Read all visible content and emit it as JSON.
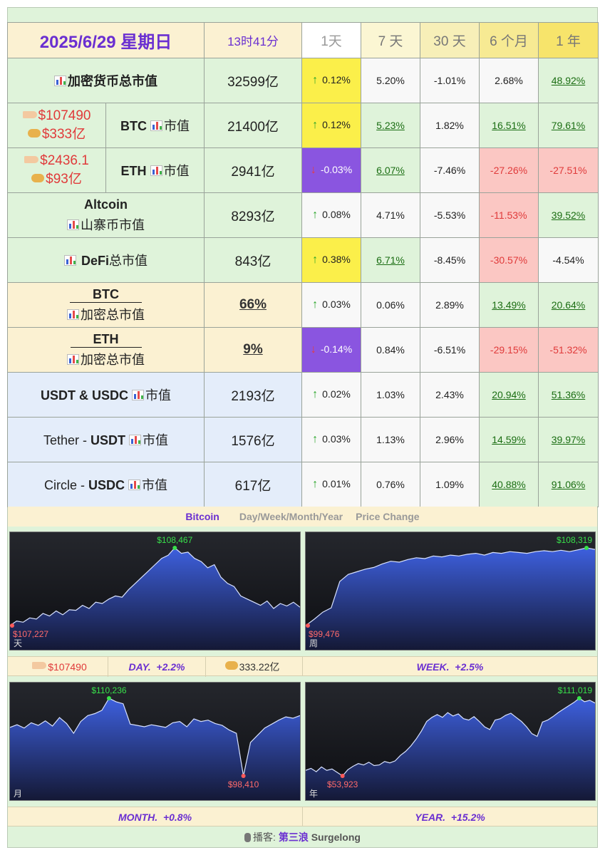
{
  "header": {
    "date": "2025/6/29 星期日",
    "time": "13时41分",
    "periods": [
      "1天",
      "7 天",
      "30 天",
      "6 个月",
      "1 年"
    ]
  },
  "rows": [
    {
      "id": "total",
      "label": "加密货币总市值",
      "value": "32599亿",
      "changes": [
        "0.12%",
        "5.20%",
        "-1.01%",
        "2.68%",
        "48.92%"
      ]
    },
    {
      "id": "btc",
      "price": "$107490",
      "volume": "$333亿",
      "coin": "BTC",
      "label": "市值",
      "value": "21400亿",
      "changes": [
        "0.12%",
        "5.23%",
        "1.82%",
        "16.51%",
        "79.61%"
      ]
    },
    {
      "id": "eth",
      "price": "$2436.1",
      "volume": "$93亿",
      "coin": "ETH",
      "label": "市值",
      "value": "2941亿",
      "changes": [
        "-0.03%",
        "6.07%",
        "-7.46%",
        "-27.26%",
        "-27.51%"
      ]
    },
    {
      "id": "alt",
      "title": "Altcoin",
      "label": "山寨币市值",
      "value": "8293亿",
      "changes": [
        "0.08%",
        "4.71%",
        "-5.53%",
        "-11.53%",
        "39.52%"
      ]
    },
    {
      "id": "defi",
      "coin": "DeFi",
      "label": "总市值",
      "value": "843亿",
      "changes": [
        "0.38%",
        "6.71%",
        "-8.45%",
        "-30.57%",
        "-4.54%"
      ]
    },
    {
      "id": "btcdom",
      "title": "BTC",
      "label": "加密总市值",
      "value": "66%",
      "changes": [
        "0.03%",
        "0.06%",
        "2.89%",
        "13.49%",
        "20.64%"
      ]
    },
    {
      "id": "ethdom",
      "title": "ETH",
      "label": "加密总市值",
      "value": "9%",
      "changes": [
        "-0.14%",
        "0.84%",
        "-6.51%",
        "-29.15%",
        "-51.32%"
      ]
    },
    {
      "id": "stable",
      "coin": "USDT & USDC",
      "label": "市值",
      "value": "2193亿",
      "changes": [
        "0.02%",
        "1.03%",
        "2.43%",
        "20.94%",
        "51.36%"
      ]
    },
    {
      "id": "usdt",
      "prefix": "Tether - ",
      "coin": "USDT",
      "label": "市值",
      "value": "1576亿",
      "changes": [
        "0.03%",
        "1.13%",
        "2.96%",
        "14.59%",
        "39.97%"
      ]
    },
    {
      "id": "usdc",
      "prefix": "Circle - ",
      "coin": "USDC",
      "label": "市值",
      "value": "617亿",
      "changes": [
        "0.01%",
        "0.76%",
        "1.09%",
        "40.88%",
        "91.06%"
      ]
    }
  ],
  "section": {
    "name": "Bitcoin",
    "desc": "Day/Week/Month/Year",
    "desc2": "Price Change"
  },
  "day_strip": {
    "price": "$107490",
    "label": "DAY.",
    "change": "+2.2%",
    "volume": "333.22亿"
  },
  "week_strip": {
    "label": "WEEK.",
    "change": "+2.5%"
  },
  "month_strip": {
    "label": "MONTH.",
    "change": "+0.8%"
  },
  "year_strip": {
    "label": "YEAR.",
    "change": "+15.2%"
  },
  "footer": {
    "prefix": "播客:",
    "name": "第三浪",
    "en": "Surgelong"
  },
  "colors": {
    "up": "#2aa52a",
    "down": "#e53d3d",
    "accent": "#6a2fd1"
  },
  "chart_data": [
    {
      "type": "area",
      "title": "",
      "period_label": "天",
      "max_label": "$108,467",
      "min_label": "$107,227",
      "values": [
        107227,
        107300,
        107280,
        107350,
        107330,
        107420,
        107380,
        107460,
        107400,
        107480,
        107470,
        107550,
        107500,
        107600,
        107580,
        107650,
        107700,
        107680,
        107800,
        107900,
        108000,
        108100,
        108200,
        108300,
        108350,
        108467,
        108380,
        108400,
        108300,
        108250,
        108150,
        108200,
        108000,
        107900,
        107850,
        107700,
        107650,
        107600,
        107550,
        107620,
        107500,
        107580,
        107540,
        107600,
        107520
      ]
    },
    {
      "type": "area",
      "title": "",
      "period_label": "周",
      "max_label": "$108,319",
      "min_label": "$99,476",
      "values": [
        99476,
        100200,
        101000,
        101500,
        104500,
        105300,
        105600,
        105900,
        106100,
        106500,
        106800,
        106700,
        107000,
        107200,
        107100,
        107400,
        107300,
        107500,
        107400,
        107600,
        107700,
        107500,
        107800,
        107700,
        107900,
        107800,
        107700,
        107900,
        108000,
        107900,
        108050,
        107900,
        108100,
        108319,
        108150
      ]
    },
    {
      "type": "area",
      "title": "",
      "period_label": "月",
      "max_label": "$110,236",
      "min_label": "$98,410",
      "values": [
        105800,
        106200,
        105700,
        106500,
        106100,
        106800,
        106000,
        107300,
        106400,
        104900,
        106700,
        107600,
        107900,
        108400,
        110236,
        109700,
        109400,
        106300,
        106100,
        105900,
        106200,
        106000,
        105800,
        106500,
        106700,
        105900,
        107100,
        106700,
        106900,
        106400,
        106100,
        105400,
        104900,
        98410,
        103500,
        104600,
        105700,
        106300,
        106900,
        107400,
        107200,
        107600
      ]
    },
    {
      "type": "area",
      "title": "",
      "period_label": "年",
      "max_label": "$111,019",
      "min_label": "$53,923",
      "values": [
        58000,
        59500,
        57000,
        60500,
        58000,
        59000,
        56500,
        53923,
        58500,
        61000,
        63000,
        62000,
        64000,
        61500,
        62000,
        64500,
        63500,
        65000,
        69000,
        72000,
        76000,
        81000,
        87000,
        94000,
        97000,
        99000,
        97000,
        100500,
        98000,
        99500,
        96000,
        95000,
        97500,
        94000,
        90000,
        88000,
        95000,
        96000,
        98500,
        100000,
        97000,
        94000,
        90000,
        85000,
        83000,
        93500,
        95000,
        97500,
        100500,
        103000,
        105500,
        108000,
        111019,
        108500,
        109500,
        107490
      ]
    }
  ]
}
